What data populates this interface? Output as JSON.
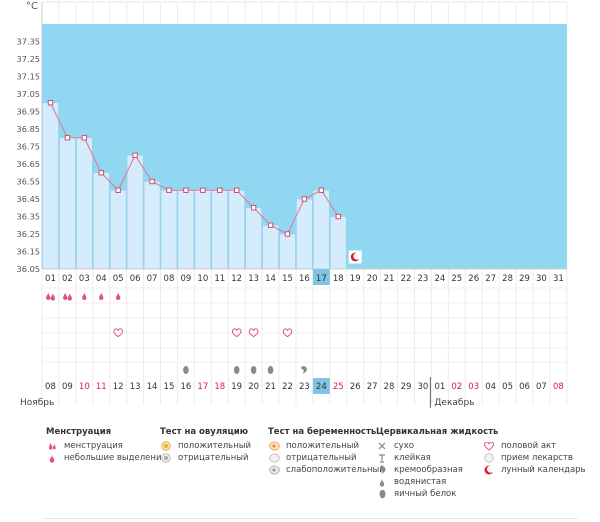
{
  "chart_data": {
    "type": "bar",
    "unit_label": "°C",
    "ylim": [
      36.05,
      37.45
    ],
    "yticks": [
      "37.35",
      "37.25",
      "37.15",
      "37.05",
      "36.95",
      "36.85",
      "36.75",
      "36.65",
      "36.55",
      "36.45",
      "36.35",
      "36.25",
      "36.15",
      "36.05"
    ],
    "day_labels": [
      "01",
      "02",
      "03",
      "04",
      "05",
      "06",
      "07",
      "08",
      "09",
      "10",
      "11",
      "12",
      "13",
      "14",
      "15",
      "16",
      "17",
      "18",
      "19",
      "20",
      "21",
      "22",
      "23",
      "24",
      "25",
      "26",
      "27",
      "28",
      "29",
      "30",
      "31"
    ],
    "temperatures": [
      37.0,
      36.8,
      36.8,
      36.6,
      36.5,
      36.7,
      36.55,
      36.5,
      36.5,
      36.5,
      36.5,
      36.5,
      36.4,
      36.3,
      36.25,
      36.45,
      36.5,
      36.35
    ],
    "current_day": "17",
    "lunar_day": "19",
    "date_labels": [
      "08",
      "09",
      "10",
      "11",
      "12",
      "13",
      "14",
      "15",
      "16",
      "17",
      "18",
      "19",
      "20",
      "21",
      "22",
      "23",
      "24",
      "25",
      "26",
      "27",
      "28",
      "29",
      "30",
      "01",
      "02",
      "03",
      "04",
      "05",
      "06",
      "07",
      "08"
    ],
    "red_dates": [
      2,
      3,
      9,
      10,
      17,
      24,
      25,
      30
    ],
    "current_date_index": 16,
    "month_left": "Ноябрь",
    "month_right": "Декабрь",
    "menstruation_days": [
      1,
      2,
      3,
      4,
      5
    ],
    "heavy_menstruation_days": [
      1,
      2
    ],
    "intercourse_days": [
      5,
      12,
      13,
      15
    ],
    "egg_white_days": [
      9,
      12,
      13,
      14
    ],
    "creamy_day": 16,
    "colors": {
      "fill": "#d4ecfc",
      "fill_border": "#9ccde9",
      "band": "#90d8f2",
      "line": "#e07a97",
      "current": "#7fc4e4",
      "red": "#d6203c"
    }
  },
  "legend": {
    "menstruation": {
      "title": "Менструация",
      "items": [
        "менструация",
        "небольшие выделения"
      ]
    },
    "ovulation": {
      "title": "Тест на овуляцию",
      "items": [
        "положительный",
        "отрицательный"
      ]
    },
    "pregnancy": {
      "title": "Тест на беременность",
      "items": [
        "положительный",
        "отрицательный",
        "слабоположительный"
      ]
    },
    "cervical": {
      "title": "Цервикальная жидкость",
      "items": [
        "сухо",
        "клейкая",
        "кремообразная",
        "водянистая",
        "яичный белок"
      ]
    },
    "other": {
      "items": [
        "половой акт",
        "прием лекарств",
        "лунный календарь"
      ]
    }
  }
}
